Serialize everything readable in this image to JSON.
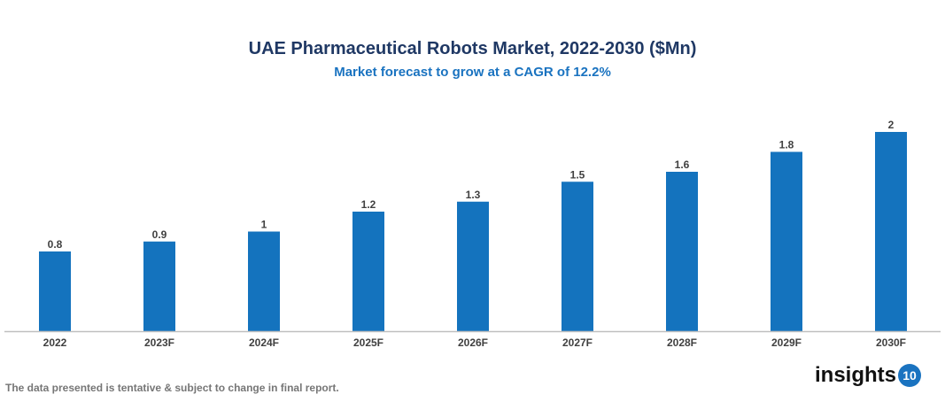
{
  "chart_data": {
    "type": "bar",
    "title": "UAE Pharmaceutical Robots Market, 2022-2030 ($Mn)",
    "subtitle": "Market forecast to grow at a CAGR of 12.2%",
    "categories": [
      "2022",
      "2023F",
      "2024F",
      "2025F",
      "2026F",
      "2027F",
      "2028F",
      "2029F",
      "2030F"
    ],
    "values": [
      0.8,
      0.9,
      1,
      1.2,
      1.3,
      1.5,
      1.6,
      1.8,
      2
    ],
    "data_labels": [
      "0.8",
      "0.9",
      "1",
      "1.2",
      "1.3",
      "1.5",
      "1.6",
      "1.8",
      "2"
    ],
    "xlabel": "",
    "ylabel": "",
    "ylim": [
      0,
      2
    ],
    "grid": false,
    "bar_color": "#1473be"
  },
  "footer": {
    "note": "The data presented is tentative & subject to change in final report.",
    "logo_text": "insights",
    "logo_number": "10"
  }
}
